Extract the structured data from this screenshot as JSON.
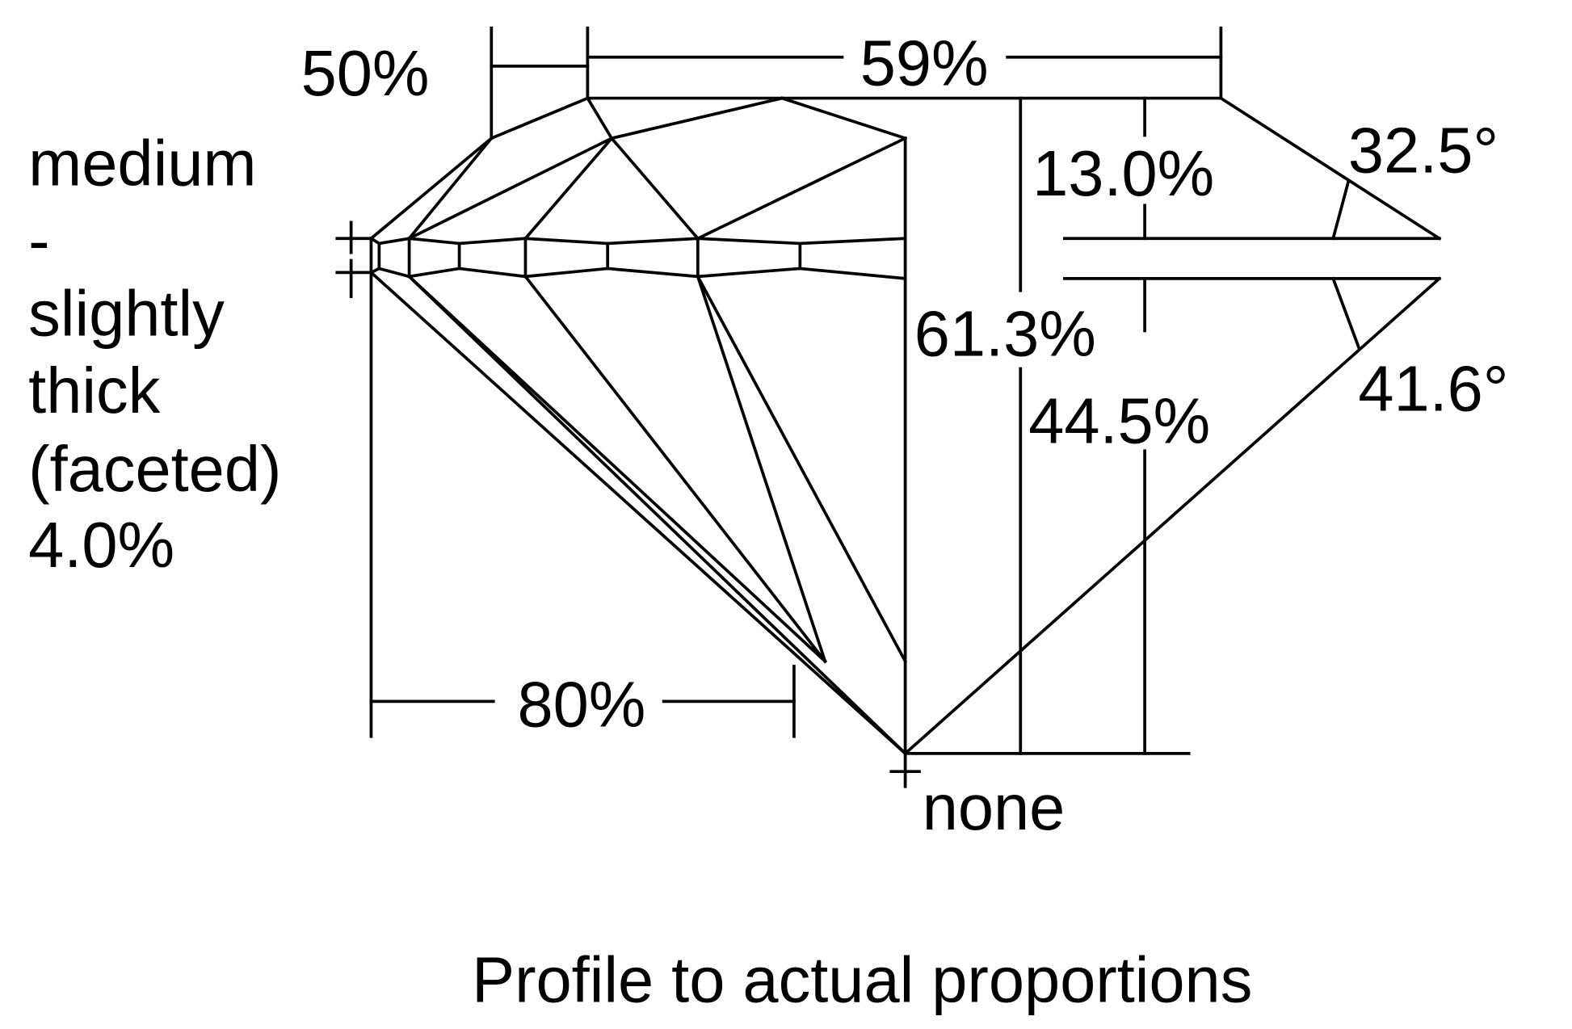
{
  "labels": {
    "table_crown_star": "50%",
    "table": "59%",
    "crown_height": "13.0%",
    "crown_angle": "32.5°",
    "total_depth": "61.3%",
    "pavilion_depth": "44.5%",
    "pavilion_angle": "41.6°",
    "lower_half": "80%",
    "culet": "none",
    "girdle": [
      "medium",
      "-",
      "slightly",
      "thick",
      "(faceted)",
      "4.0%"
    ]
  },
  "caption": "Profile to actual proportions",
  "colors": {
    "line": "#000000",
    "background": "#ffffff"
  }
}
